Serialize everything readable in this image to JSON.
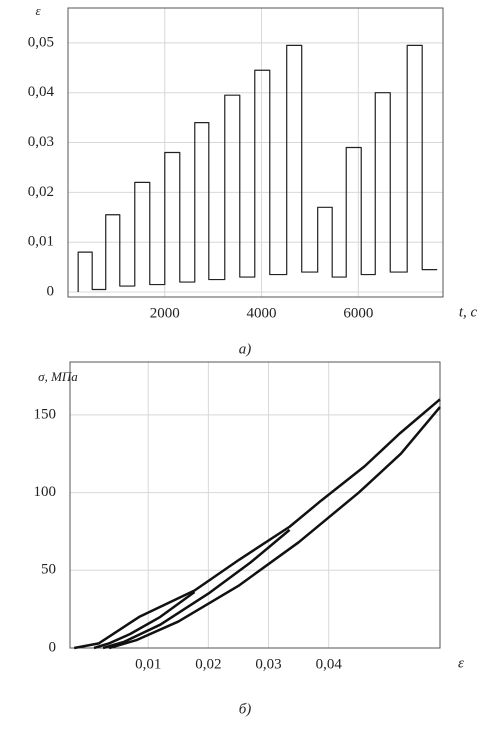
{
  "chart_data": [
    {
      "type": "line",
      "y_label": "ε",
      "x_label": "t, с",
      "caption": "а)",
      "xlim": [
        0,
        7750
      ],
      "xticks": [
        2000,
        4000,
        6000
      ],
      "ylim": [
        -0.001,
        0.057
      ],
      "yticks": [
        0,
        {
          "value": 0.01,
          "label": "0,01"
        },
        {
          "value": 0.02,
          "label": "0,02"
        },
        {
          "value": 0.03,
          "label": "0,03"
        },
        {
          "value": 0.04,
          "label": "0,04"
        },
        {
          "value": 0.05,
          "label": "0,05"
        }
      ],
      "grid": true,
      "line_width": 1.2,
      "series": [
        {
          "color": "#222",
          "x": [
            210,
            210,
            500,
            500,
            780,
            780,
            1070,
            1070,
            1380,
            1380,
            1690,
            1690,
            2000,
            2000,
            2310,
            2310,
            2620,
            2620,
            2910,
            2910,
            3240,
            3240,
            3550,
            3550,
            3860,
            3860,
            4170,
            4170,
            4520,
            4520,
            4830,
            4830,
            5160,
            5160,
            5460,
            5460,
            5750,
            5750,
            6060,
            6060,
            6350,
            6350,
            6660,
            6660,
            7010,
            7010,
            7320,
            7320,
            7630
          ],
          "values": [
            0,
            0.008,
            0.008,
            0.0005,
            0.0005,
            0.0155,
            0.0155,
            0.0012,
            0.0012,
            0.022,
            0.022,
            0.0015,
            0.0015,
            0.028,
            0.028,
            0.002,
            0.002,
            0.034,
            0.034,
            0.0025,
            0.0025,
            0.0395,
            0.0395,
            0.003,
            0.003,
            0.0445,
            0.0445,
            0.0035,
            0.0035,
            0.0495,
            0.0495,
            0.004,
            0.004,
            0.017,
            0.017,
            0.003,
            0.003,
            0.029,
            0.029,
            0.0035,
            0.0035,
            0.04,
            0.04,
            0.004,
            0.004,
            0.0495,
            0.0495,
            0.0045,
            0.0045
          ]
        }
      ]
    },
    {
      "type": "line",
      "y_label": "σ, МПа",
      "x_label": "ε",
      "caption": "б)",
      "xlim": [
        -0.003,
        0.0585
      ],
      "xticks": [
        {
          "value": 0.01,
          "label": "0,01"
        },
        {
          "value": 0.02,
          "label": "0,02"
        },
        {
          "value": 0.03,
          "label": "0,03"
        },
        {
          "value": 0.04,
          "label": "0,04"
        }
      ],
      "ylim": [
        0,
        184
      ],
      "yticks": [
        0,
        50,
        100,
        150
      ],
      "grid": true,
      "line_width": 2.5,
      "series": [
        {
          "color": "#111",
          "x": [
            -0.0023,
            0.0018,
            0.0085,
            0.0177,
            0.0252,
            0.0335,
            0.0388,
            0.046,
            0.0518,
            0.0585
          ],
          "values": [
            0,
            3,
            20,
            37,
            57,
            78,
            95,
            117,
            138,
            160
          ]
        },
        {
          "color": "#111",
          "x": [
            0.0585,
            0.052,
            0.045,
            0.035,
            0.025,
            0.015,
            0.008,
            0.0035
          ],
          "values": [
            155,
            125,
            100,
            68,
            40,
            17,
            5,
            0
          ]
        },
        {
          "color": "#111",
          "x": [
            0.0335,
            0.027,
            0.02,
            0.012,
            0.006,
            0.0025
          ],
          "values": [
            76,
            55,
            35,
            15,
            4,
            0
          ]
        },
        {
          "color": "#111",
          "x": [
            0.0177,
            0.012,
            0.007,
            0.0035,
            0.001
          ],
          "values": [
            36,
            20,
            9,
            3,
            0
          ]
        }
      ]
    }
  ]
}
